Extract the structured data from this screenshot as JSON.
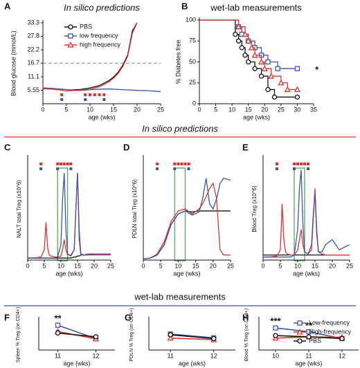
{
  "sections": [
    {
      "text": "In silico predictions",
      "color": "#e0312f"
    },
    {
      "text": "wet-lab measurements",
      "color": "#3a55a8"
    }
  ],
  "chart_data": [
    {
      "panel": "A",
      "type": "line",
      "title": "In silico predictions",
      "title_color": "#e0312f",
      "xlabel": "age (wks)",
      "ylabel": "Blood glucose (mmol/L)",
      "x": [
        0,
        2,
        4,
        5,
        6,
        8,
        10,
        12,
        14,
        15,
        16,
        17,
        18,
        19,
        20,
        22,
        25
      ],
      "xlim": [
        0,
        25
      ],
      "xticks": [
        0,
        5,
        10,
        15,
        20,
        25
      ],
      "ylim": [
        0,
        33.3
      ],
      "yticks": [
        5.55,
        11.1,
        16.7,
        22.2,
        27.8,
        33.3
      ],
      "hline": 16.7,
      "legend": "upper left",
      "series": [
        {
          "name": "PBS",
          "color": "#111111",
          "marker": "circle",
          "values": [
            6.5,
            6.3,
            6.0,
            5.8,
            5.7,
            5.9,
            6.5,
            7.5,
            9.5,
            11,
            13,
            16,
            20,
            30,
            33.3,
            null,
            null
          ]
        },
        {
          "name": "low frequency",
          "color": "#3a55a8",
          "marker": "square",
          "values": [
            6.5,
            6.3,
            6.0,
            5.8,
            5.6,
            5.5,
            5.8,
            6.0,
            6.1,
            6.0,
            5.9,
            5.8,
            5.7,
            5.6,
            5.5,
            5.4,
            5.0
          ]
        },
        {
          "name": "high frequency",
          "color": "#e0312f",
          "marker": "triangle",
          "values": [
            6.2,
            6.0,
            5.6,
            5.2,
            5.4,
            5.6,
            6.0,
            7,
            9,
            10.5,
            12.5,
            15.5,
            19.5,
            29,
            33.3,
            null,
            null
          ]
        }
      ],
      "doses": [
        {
          "color": "#e0312f",
          "x": [
            4,
            9,
            10,
            11,
            12,
            13
          ]
        },
        {
          "color": "#3a55a8",
          "x": [
            4,
            9,
            13
          ]
        }
      ]
    },
    {
      "panel": "B",
      "type": "step",
      "title": "wet-lab measurements",
      "title_color": "#3a55a8",
      "xlabel": "age (wks)",
      "ylabel": "% Diabetes free",
      "xlim": [
        0,
        35
      ],
      "xticks": [
        0,
        5,
        10,
        15,
        20,
        25,
        30,
        35
      ],
      "ylim": [
        0,
        100
      ],
      "yticks": [
        0,
        25,
        50,
        75,
        100
      ],
      "series": [
        {
          "color": "#111111",
          "marker": "circle",
          "x": [
            0,
            11,
            12,
            13,
            14,
            15,
            17,
            19,
            21,
            23,
            30
          ],
          "values": [
            100,
            83,
            75,
            67,
            58,
            50,
            42,
            33,
            17,
            8,
            8
          ]
        },
        {
          "color": "#3a55a8",
          "marker": "square",
          "x": [
            0,
            12,
            13,
            15,
            17,
            19,
            21,
            24,
            30
          ],
          "values": [
            100,
            92,
            83,
            75,
            67,
            58,
            50,
            42,
            42
          ]
        },
        {
          "color": "#e0312f",
          "marker": "triangle",
          "x": [
            0,
            12,
            14,
            15,
            16,
            17,
            19,
            20,
            22,
            25,
            27,
            30
          ],
          "values": [
            100,
            92,
            83,
            75,
            67,
            58,
            50,
            42,
            33,
            25,
            17,
            17
          ]
        }
      ],
      "annotations": [
        {
          "text": "*",
          "color": "#3a55a8",
          "x": 36,
          "y": 40
        }
      ]
    },
    {
      "panel": "C",
      "type": "line",
      "xlabel": "age (wks)",
      "ylabel": "NALT total Treg (x10^6)",
      "x": [
        0,
        2,
        4,
        5,
        5.5,
        6,
        6.5,
        7,
        8,
        9,
        10,
        10.5,
        11,
        11.5,
        12,
        13,
        14,
        14.5,
        15,
        15.5,
        16,
        17,
        18,
        20,
        22,
        25
      ],
      "xlim": [
        0,
        25
      ],
      "xticks": [
        0,
        5,
        10,
        15,
        20,
        25
      ],
      "ylim": [
        0,
        1
      ],
      "highlight": [
        9,
        12
      ],
      "highlight_color": "#4caf50",
      "series": [
        {
          "color": "#111111",
          "values": [
            0.02,
            0.02,
            0.02,
            0.02,
            0.02,
            0.02,
            0.02,
            0.02,
            0.02,
            0.02,
            0.02,
            0.02,
            0.02,
            0.02,
            0.02,
            0.02,
            0.03,
            0.03,
            0.04,
            0.04,
            0.05,
            0.05,
            0.05,
            0.06,
            0.06,
            0.06
          ]
        },
        {
          "color": "#e0312f",
          "values": [
            0.02,
            0.02,
            0.03,
            0.1,
            0.37,
            0.12,
            0.05,
            0.04,
            0.03,
            0.03,
            0.04,
            0.1,
            0.2,
            0.1,
            0.05,
            0.05,
            0.1,
            0.5,
            0.85,
            0.3,
            0.06,
            0.05,
            0.05,
            0.05,
            0.05,
            0.05
          ]
        },
        {
          "color": "#3a55a8",
          "values": [
            0.02,
            0.02,
            0.02,
            0.02,
            0.02,
            0.02,
            0.02,
            0.02,
            0.02,
            0.03,
            0.15,
            0.6,
            0.85,
            0.3,
            0.06,
            0.04,
            0.1,
            0.5,
            0.85,
            0.2,
            0.05,
            0.05,
            0.06,
            0.06,
            0.06,
            0.06
          ]
        }
      ],
      "doses": [
        {
          "color": "#e0312f",
          "x": [
            4,
            9,
            10,
            11,
            12,
            13
          ]
        },
        {
          "color": "#3a55a8",
          "x": [
            4,
            9,
            13
          ]
        }
      ]
    },
    {
      "panel": "D",
      "type": "line",
      "xlabel": "age (wks)",
      "ylabel": "PDLN total Treg (x10^6)",
      "x": [
        0,
        2,
        4,
        6,
        8,
        10,
        12,
        14,
        16,
        17,
        18,
        19,
        20,
        21,
        22,
        23,
        25
      ],
      "xlim": [
        0,
        25
      ],
      "xticks": [
        0,
        5,
        10,
        15,
        20,
        25
      ],
      "ylim": [
        0,
        1
      ],
      "highlight": [
        9,
        12
      ],
      "highlight_color": "#4caf50",
      "series": [
        {
          "color": "#111111",
          "values": [
            0.01,
            0.02,
            0.05,
            0.15,
            0.35,
            0.45,
            0.48,
            0.47,
            0.48,
            0.48,
            0.48,
            0.48,
            0.48,
            0.48,
            0.48,
            0.48,
            0.48
          ]
        },
        {
          "color": "#e0312f",
          "values": [
            0.01,
            0.02,
            0.06,
            0.18,
            0.38,
            0.48,
            0.5,
            0.45,
            0.5,
            0.55,
            0.62,
            0.7,
            0.75,
            0.6,
            0.1,
            0.05,
            0.05
          ]
        },
        {
          "color": "#3a55a8",
          "values": [
            0.01,
            0.02,
            0.05,
            0.15,
            0.35,
            0.45,
            0.48,
            0.44,
            0.47,
            0.6,
            0.8,
            0.55,
            0.5,
            0.6,
            0.75,
            0.8,
            0.78
          ]
        }
      ],
      "doses": [
        {
          "color": "#e0312f",
          "x": [
            4,
            9,
            10,
            11,
            12,
            13
          ]
        },
        {
          "color": "#3a55a8",
          "x": [
            4,
            9,
            13
          ]
        }
      ]
    },
    {
      "panel": "E",
      "type": "line",
      "xlabel": "age (wks)",
      "ylabel": "Blood Treg (x10^6)",
      "x": [
        0,
        2,
        4,
        5,
        5.5,
        6,
        6.5,
        7,
        8,
        9,
        10,
        10.5,
        11,
        11.5,
        12,
        13,
        14,
        14.5,
        15,
        15.5,
        16,
        17,
        18,
        20,
        22,
        25
      ],
      "xlim": [
        0,
        25
      ],
      "xticks": [
        0,
        5,
        10,
        15,
        20,
        25
      ],
      "ylim": [
        0,
        1
      ],
      "highlight": [
        9,
        12
      ],
      "highlight_color": "#4caf50",
      "series": [
        {
          "color": "#111111",
          "values": [
            0.05,
            0.05,
            0.05,
            0.05,
            0.05,
            0.05,
            0.05,
            0.05,
            0.05,
            0.05,
            0.05,
            0.05,
            0.05,
            0.05,
            0.05,
            0.05,
            0.05,
            0.05,
            0.05,
            0.05,
            0.05,
            0.05,
            0.05,
            0.05,
            0.05,
            0.05
          ]
        },
        {
          "color": "#e0312f",
          "values": [
            0.03,
            0.03,
            0.04,
            0.1,
            0.55,
            0.2,
            0.08,
            0.06,
            0.05,
            0.05,
            0.1,
            0.2,
            0.3,
            0.15,
            0.08,
            0.06,
            0.1,
            0.4,
            0.7,
            0.3,
            0.08,
            0.06,
            0.05,
            0.05,
            0.05,
            0.05
          ]
        },
        {
          "color": "#3a55a8",
          "values": [
            0.03,
            0.03,
            0.03,
            0.03,
            0.03,
            0.03,
            0.03,
            0.03,
            0.03,
            0.05,
            0.3,
            0.7,
            0.88,
            0.35,
            0.08,
            0.06,
            0.15,
            0.45,
            0.65,
            0.25,
            0.08,
            0.08,
            0.15,
            0.2,
            0.1,
            0.15
          ]
        }
      ],
      "doses": [
        {
          "color": "#e0312f",
          "x": [
            4,
            9,
            10,
            11,
            12,
            13
          ]
        },
        {
          "color": "#3a55a8",
          "x": [
            4,
            9,
            13
          ]
        }
      ]
    },
    {
      "panel": "F",
      "type": "line",
      "xlabel": "age (wks)",
      "ylabel": "Spleen % Treg (on CD4+)",
      "categories": [
        "11",
        "12"
      ],
      "ylim": [
        0,
        12
      ],
      "series": [
        {
          "color": "#3a55a8",
          "marker": "square",
          "values": [
            9.8,
            4.5
          ],
          "errors": [
            0.6,
            0.3
          ]
        },
        {
          "color": "#e0312f",
          "marker": "triangle",
          "values": [
            7.3,
            4.4
          ],
          "errors": [
            0.4,
            0.3
          ]
        },
        {
          "color": "#111111",
          "marker": "circle",
          "values": [
            6.7,
            5.2
          ],
          "errors": [
            0.3,
            0.3
          ]
        }
      ],
      "annotations": [
        {
          "text": "**",
          "x": "11"
        }
      ]
    },
    {
      "panel": "G",
      "type": "line",
      "xlabel": "age (wks)",
      "ylabel": "PDLN % Treg (on CD4+)",
      "categories": [
        "11",
        "12"
      ],
      "ylim": [
        0,
        12
      ],
      "series": [
        {
          "color": "#3a55a8",
          "marker": "square",
          "values": [
            6.3,
            4.8
          ],
          "errors": [
            0.4,
            0.4
          ]
        },
        {
          "color": "#e0312f",
          "marker": "triangle",
          "values": [
            4.7,
            4.1
          ],
          "errors": [
            0.6,
            0.4
          ]
        },
        {
          "color": "#111111",
          "marker": "circle",
          "values": [
            6.0,
            4.5
          ],
          "errors": [
            0.4,
            0.4
          ]
        }
      ]
    },
    {
      "panel": "H",
      "type": "line",
      "xlabel": "age (wks)",
      "ylabel": "Blood % Treg (on CD4+)",
      "categories": [
        "10",
        "11",
        "12"
      ],
      "ylim": [
        0,
        12
      ],
      "legend": "upper right",
      "series": [
        {
          "name": "Low-frequency",
          "color": "#3a55a8",
          "marker": "square",
          "values": [
            8.7,
            7.2,
            4.5
          ],
          "errors": [
            0.5,
            0.3,
            0.4
          ]
        },
        {
          "name": "High-frequency",
          "color": "#e0312f",
          "marker": "triangle",
          "values": [
            4.7,
            5.2,
            5.0
          ],
          "errors": [
            0.3,
            0.3,
            0.4
          ]
        },
        {
          "name": "PBS",
          "color": "#111111",
          "marker": "circle",
          "values": [
            5.7,
            5.2,
            4.5
          ],
          "errors": [
            0.5,
            0.3,
            0.4
          ]
        }
      ],
      "annotations": [
        {
          "text": "***",
          "x": "10"
        },
        {
          "text": "**",
          "x": "11"
        }
      ]
    }
  ]
}
